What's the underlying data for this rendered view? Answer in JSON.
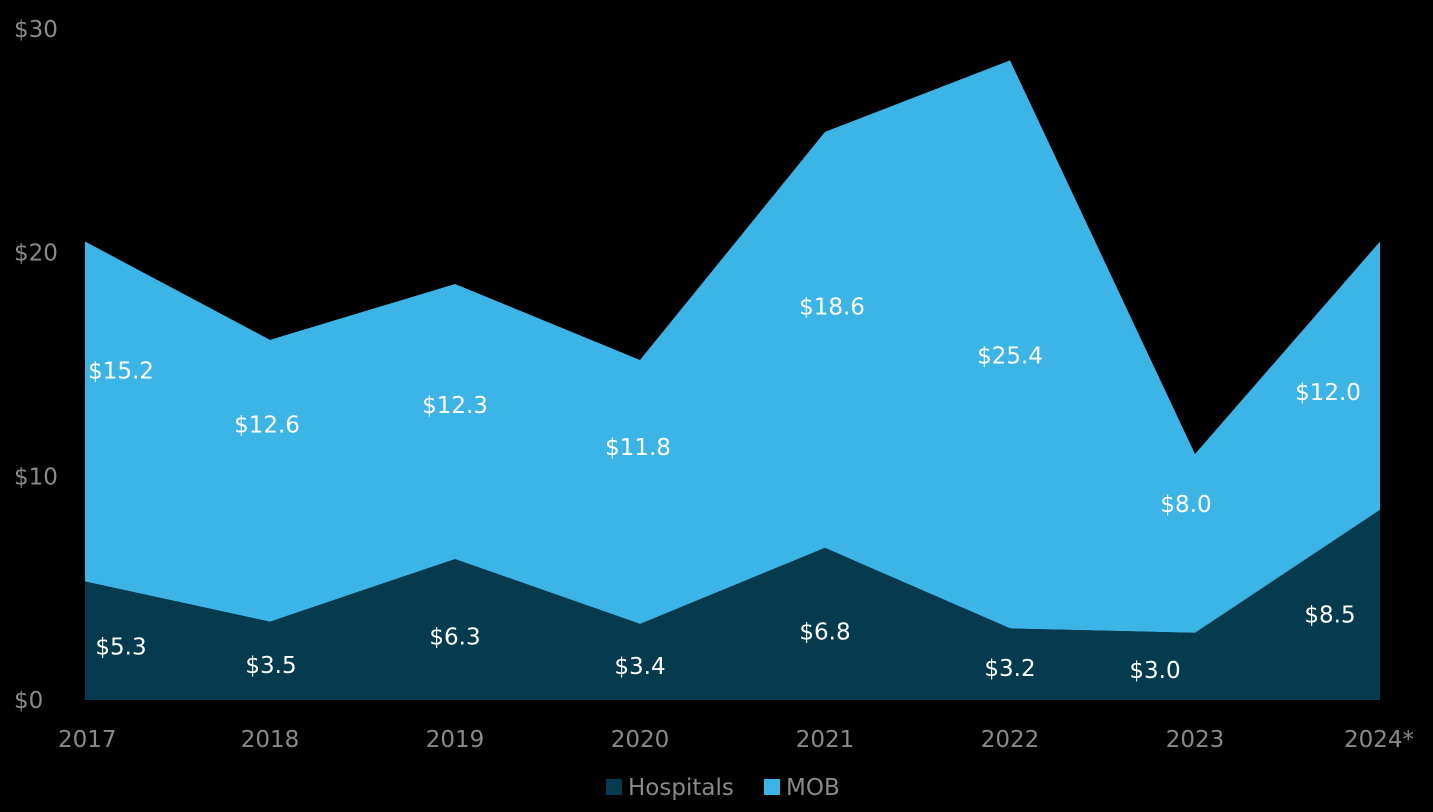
{
  "chart_data": {
    "type": "area",
    "stacked": true,
    "categories": [
      "2017",
      "2018",
      "2019",
      "2020",
      "2021",
      "2022",
      "2023",
      "2024*"
    ],
    "series": [
      {
        "name": "Hospitals",
        "color": "#063a4e",
        "values": [
          5.3,
          3.5,
          6.3,
          3.4,
          6.8,
          3.2,
          3.0,
          8.5
        ],
        "labels": [
          "$5.3",
          "$3.5",
          "$6.3",
          "$3.4",
          "$6.8",
          "$3.2",
          "$3.0",
          "$8.5"
        ]
      },
      {
        "name": "MOB",
        "color": "#3cb4e5",
        "values": [
          15.2,
          12.6,
          12.3,
          11.8,
          18.6,
          25.4,
          8.0,
          12.0
        ],
        "labels": [
          "$15.2",
          "$12.6",
          "$12.3",
          "$11.8",
          "$18.6",
          "$25.4",
          "$8.0",
          "$12.0"
        ]
      }
    ],
    "y_ticks": [
      0,
      10,
      20,
      30
    ],
    "y_tick_labels": [
      "$0",
      "$10",
      "$20",
      "$30"
    ],
    "ylim": [
      0,
      30
    ],
    "grid": false,
    "legend": {
      "position": "bottom-center",
      "entries": [
        "Hospitals",
        "MOB"
      ]
    },
    "title": "",
    "xlabel": "",
    "ylabel": ""
  }
}
